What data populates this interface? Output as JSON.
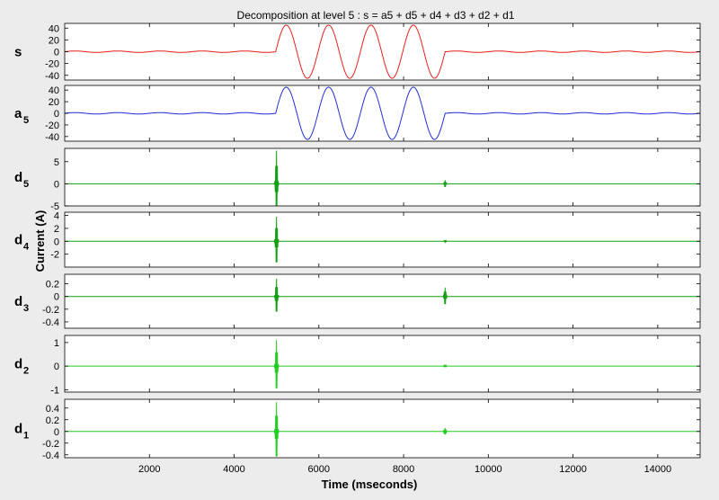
{
  "chart_data": {
    "type": "line",
    "title": "Decomposition at level 5 : s = a5 + d5 + d4 + d3 + d2 + d1",
    "xlabel": "Time (mseconds)",
    "ylabel": "Current (A)",
    "xlim": [
      0,
      15000
    ],
    "x_ticks": [
      "2000",
      "4000",
      "6000",
      "8000",
      "10000",
      "12000",
      "14000"
    ],
    "grid": false,
    "panels": [
      {
        "label": "s",
        "subscript": "",
        "color": "#e8201c",
        "ylim": [
          -48,
          48
        ],
        "y_ticks": [
          "40",
          "20",
          "0",
          "-20",
          "-40"
        ],
        "ytick_values": [
          40,
          20,
          0,
          -20,
          -40
        ],
        "signal": {
          "kind": "sine",
          "amplitude": 45,
          "period_ms": 1000,
          "start_ms": 4980,
          "end_ms": 8980,
          "ripple_amplitude": 1.2
        }
      },
      {
        "label": "a",
        "subscript": "5",
        "color": "#1f2fd6",
        "ylim": [
          -48,
          48
        ],
        "y_ticks": [
          "40",
          "20",
          "0",
          "-20",
          "-40"
        ],
        "ytick_values": [
          40,
          20,
          0,
          -20,
          -40
        ],
        "signal": {
          "kind": "sine",
          "amplitude": 45,
          "period_ms": 1000,
          "start_ms": 4980,
          "end_ms": 8980,
          "ripple_amplitude": 1.2
        }
      },
      {
        "label": "d",
        "subscript": "5",
        "color": "#12a012",
        "ylim": [
          -5,
          8
        ],
        "y_ticks": [
          "5",
          "0",
          "-5"
        ],
        "ytick_values": [
          5,
          0,
          -5
        ],
        "signal": {
          "kind": "spikes",
          "events": [
            {
              "t_ms": 5000,
              "amplitude": 7.5
            },
            {
              "t_ms": 8980,
              "amplitude": 0.8
            }
          ]
        }
      },
      {
        "label": "d",
        "subscript": "4",
        "color": "#12a012",
        "ylim": [
          -4,
          4.5
        ],
        "y_ticks": [
          "4",
          "2",
          "0",
          "-2"
        ],
        "ytick_values": [
          4,
          2,
          0,
          -2
        ],
        "signal": {
          "kind": "spikes",
          "events": [
            {
              "t_ms": 5000,
              "amplitude": 3.8
            },
            {
              "t_ms": 8980,
              "amplitude": 0.15
            }
          ]
        }
      },
      {
        "label": "d",
        "subscript": "3",
        "color": "#12a012",
        "ylim": [
          -0.5,
          0.35
        ],
        "y_ticks": [
          "0.2",
          "0",
          "-0.2",
          "-0.4"
        ],
        "ytick_values": [
          0.2,
          0,
          -0.2,
          -0.4
        ],
        "signal": {
          "kind": "spikes",
          "events": [
            {
              "t_ms": 5000,
              "amplitude": 0.28
            },
            {
              "t_ms": 8980,
              "amplitude": 0.14
            }
          ]
        }
      },
      {
        "label": "d",
        "subscript": "2",
        "color": "#22cc22",
        "ylim": [
          -1.1,
          1.3
        ],
        "y_ticks": [
          "1",
          "0",
          "-1"
        ],
        "ytick_values": [
          1,
          0,
          -1
        ],
        "signal": {
          "kind": "spikes",
          "events": [
            {
              "t_ms": 5000,
              "amplitude": 1.1
            },
            {
              "t_ms": 8980,
              "amplitude": 0.05
            }
          ]
        }
      },
      {
        "label": "d",
        "subscript": "1",
        "color": "#22cc22",
        "ylim": [
          -0.45,
          0.55
        ],
        "y_ticks": [
          "0.4",
          "0.2",
          "0",
          "-0.2",
          "-0.4"
        ],
        "ytick_values": [
          0.4,
          0.2,
          0,
          -0.2,
          -0.4
        ],
        "signal": {
          "kind": "spikes",
          "events": [
            {
              "t_ms": 5000,
              "amplitude": 0.5
            },
            {
              "t_ms": 8980,
              "amplitude": 0.06
            }
          ]
        }
      }
    ]
  }
}
